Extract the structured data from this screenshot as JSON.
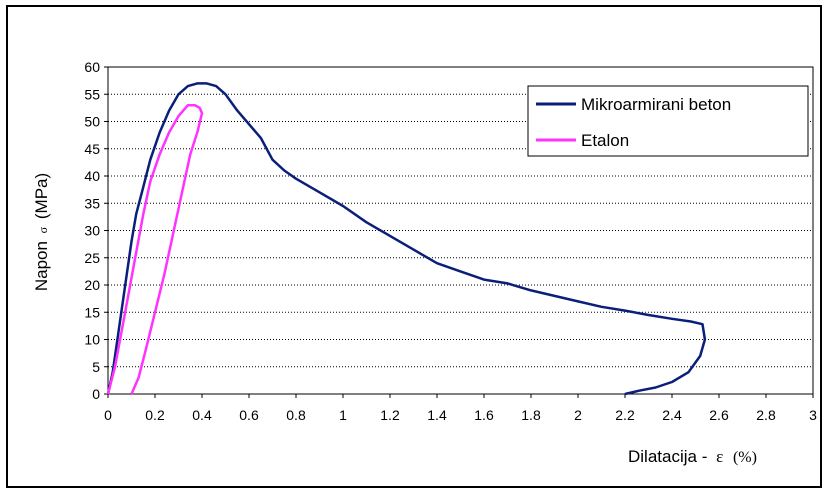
{
  "chart_data": {
    "type": "line",
    "xlabel": "Dilatacija - ε (%)",
    "xlabel_text": "Dilatacija -",
    "xlabel_symbol": "ε",
    "xlabel_unit": "(%)",
    "ylabel": "Napon σ (MPa)",
    "ylabel_pre": "Napon",
    "ylabel_symbol": "σ",
    "ylabel_unit": "(MPa)",
    "xlim": [
      0,
      3
    ],
    "ylim": [
      0,
      60
    ],
    "x_ticks": [
      "0",
      "0.2",
      "0.4",
      "0.6",
      "0.8",
      "1",
      "1.2",
      "1.4",
      "1.6",
      "1.8",
      "2",
      "2.2",
      "2.4",
      "2.6",
      "2.8",
      "3"
    ],
    "y_ticks": [
      "0",
      "5",
      "10",
      "15",
      "20",
      "25",
      "30",
      "35",
      "40",
      "45",
      "50",
      "55",
      "60"
    ],
    "grid": "horizontal dotted",
    "legend_position": "top-right",
    "series": [
      {
        "name": "Mikroarmirani beton",
        "color": "#0a1f7a",
        "points": [
          [
            0,
            0
          ],
          [
            0.02,
            4
          ],
          [
            0.04,
            10
          ],
          [
            0.06,
            16
          ],
          [
            0.08,
            22
          ],
          [
            0.1,
            28
          ],
          [
            0.12,
            33
          ],
          [
            0.15,
            38
          ],
          [
            0.18,
            43
          ],
          [
            0.22,
            48
          ],
          [
            0.26,
            52
          ],
          [
            0.3,
            55
          ],
          [
            0.34,
            56.5
          ],
          [
            0.38,
            57
          ],
          [
            0.42,
            57
          ],
          [
            0.46,
            56.5
          ],
          [
            0.5,
            55
          ],
          [
            0.55,
            52
          ],
          [
            0.6,
            49.5
          ],
          [
            0.65,
            47
          ],
          [
            0.7,
            43
          ],
          [
            0.75,
            41
          ],
          [
            0.8,
            39.5
          ],
          [
            0.9,
            37
          ],
          [
            1.0,
            34.5
          ],
          [
            1.1,
            31.5
          ],
          [
            1.2,
            29
          ],
          [
            1.3,
            26.5
          ],
          [
            1.4,
            24
          ],
          [
            1.5,
            22.5
          ],
          [
            1.6,
            21
          ],
          [
            1.7,
            20.3
          ],
          [
            1.8,
            19
          ],
          [
            1.9,
            18
          ],
          [
            2.0,
            17
          ],
          [
            2.1,
            16
          ],
          [
            2.2,
            15.3
          ],
          [
            2.3,
            14.5
          ],
          [
            2.4,
            13.8
          ],
          [
            2.48,
            13.3
          ],
          [
            2.53,
            12.8
          ],
          [
            2.54,
            10
          ],
          [
            2.52,
            7
          ],
          [
            2.47,
            4
          ],
          [
            2.4,
            2.2
          ],
          [
            2.33,
            1.2
          ],
          [
            2.26,
            0.6
          ],
          [
            2.2,
            0
          ]
        ]
      },
      {
        "name": "Etalon",
        "color": "#ff33ff",
        "points": [
          [
            0,
            0
          ],
          [
            0.03,
            5
          ],
          [
            0.06,
            12
          ],
          [
            0.09,
            19
          ],
          [
            0.12,
            26
          ],
          [
            0.15,
            33
          ],
          [
            0.18,
            39
          ],
          [
            0.22,
            44
          ],
          [
            0.26,
            48
          ],
          [
            0.3,
            51
          ],
          [
            0.34,
            53
          ],
          [
            0.37,
            53
          ],
          [
            0.39,
            52.5
          ],
          [
            0.4,
            51.5
          ],
          [
            0.38,
            48
          ],
          [
            0.35,
            44
          ],
          [
            0.32,
            38
          ],
          [
            0.28,
            30
          ],
          [
            0.24,
            22
          ],
          [
            0.2,
            15
          ],
          [
            0.16,
            8
          ],
          [
            0.13,
            3
          ],
          [
            0.1,
            0
          ]
        ]
      }
    ]
  }
}
